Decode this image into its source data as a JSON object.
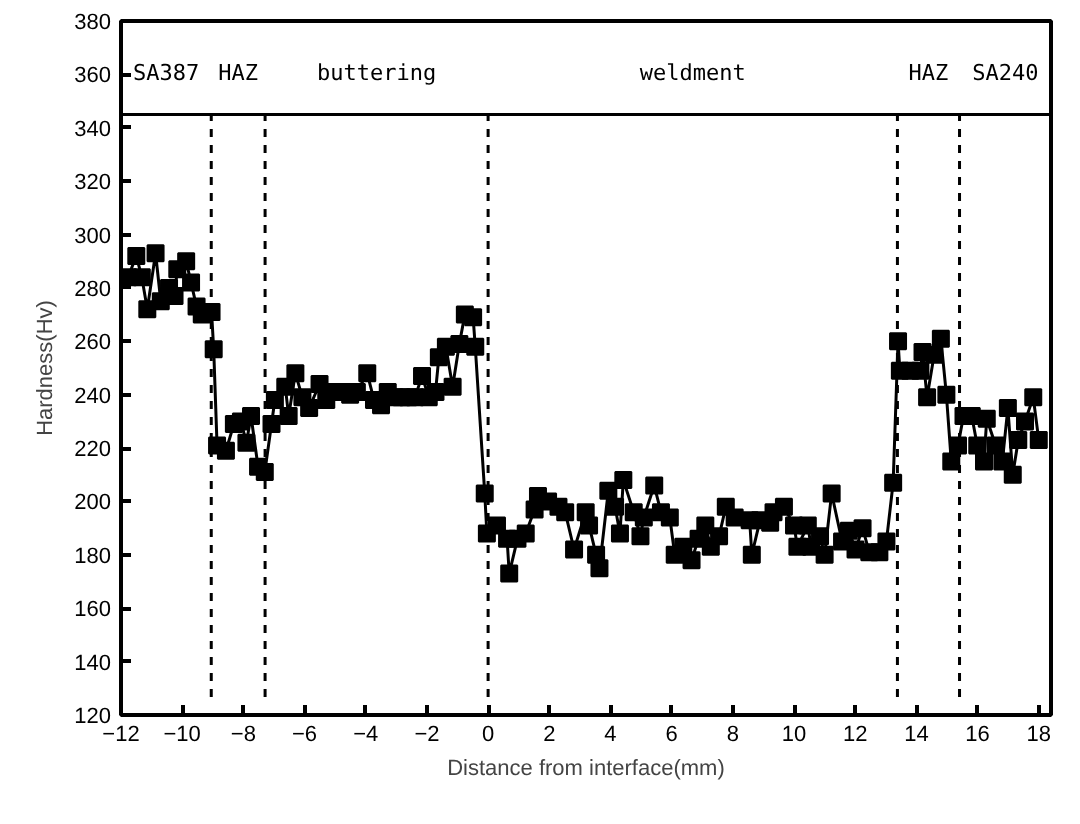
{
  "chart_data": {
    "type": "line",
    "xlabel": "Distance from interface(mm)",
    "ylabel": "Hardness(Hv)",
    "x": [
      -11.77,
      -11.5,
      -11.32,
      -11.14,
      -10.87,
      -10.7,
      -10.43,
      -10.25,
      -10.16,
      -9.87,
      -9.71,
      -9.53,
      -9.36,
      -9.04,
      -8.97,
      -8.86,
      -8.57,
      -8.31,
      -8.08,
      -7.9,
      -7.75,
      -7.52,
      -7.3,
      -7.08,
      -6.97,
      -6.63,
      -6.52,
      -6.3,
      -6.07,
      -5.85,
      -5.51,
      -5.29,
      -5.07,
      -4.73,
      -4.51,
      -4.29,
      -3.95,
      -3.73,
      -3.5,
      -3.28,
      -3.06,
      -2.83,
      -2.61,
      -2.39,
      -2.16,
      -1.94,
      -1.72,
      -1.61,
      -1.38,
      -1.16,
      -0.94,
      -0.76,
      -0.49,
      -0.42,
      -0.11,
      -0.04,
      0.29,
      0.62,
      0.69,
      0.96,
      1.23,
      1.52,
      1.63,
      1.96,
      2.3,
      2.52,
      2.81,
      3.19,
      3.3,
      3.53,
      3.64,
      3.93,
      4.15,
      4.31,
      4.42,
      4.76,
      4.98,
      5.09,
      5.43,
      5.65,
      5.94,
      6.1,
      6.38,
      6.65,
      6.88,
      7.1,
      7.28,
      7.55,
      7.77,
      8.06,
      8.55,
      8.62,
      8.89,
      9.22,
      9.33,
      9.67,
      10.0,
      10.11,
      10.45,
      10.56,
      10.85,
      11.0,
      11.23,
      11.57,
      11.79,
      12.01,
      12.24,
      12.46,
      12.79,
      13.02,
      13.24,
      13.4,
      13.46,
      13.8,
      14.13,
      14.2,
      14.35,
      14.58,
      14.8,
      14.98,
      15.14,
      15.36,
      15.54,
      15.81,
      15.99,
      16.21,
      16.3,
      16.59,
      16.81,
      16.99,
      17.15,
      17.33,
      17.55,
      17.82,
      18.0
    ],
    "series": [
      {
        "color": "#000000",
        "values": [
          284,
          292,
          284,
          272,
          293,
          275,
          280,
          277,
          287,
          290,
          282,
          273,
          270,
          271,
          257,
          221,
          219,
          229,
          230,
          222,
          232,
          213,
          211,
          229,
          238,
          243,
          232,
          248,
          239,
          235,
          244,
          238,
          241,
          241,
          240,
          241,
          248,
          238,
          236,
          241,
          239,
          239,
          239,
          239,
          247,
          239,
          241,
          254,
          258,
          243,
          259,
          270,
          269,
          258,
          203,
          188,
          191,
          186,
          173,
          186,
          188,
          197,
          202,
          200,
          198,
          196,
          182,
          196,
          191,
          180,
          175,
          204,
          198,
          188,
          208,
          196,
          187,
          194,
          206,
          196,
          194,
          180,
          183,
          178,
          186,
          191,
          183,
          187,
          198,
          194,
          193,
          180,
          193,
          192,
          196,
          198,
          191,
          183,
          191,
          183,
          187,
          180,
          203,
          185,
          189,
          182,
          190,
          181,
          181,
          185,
          207,
          260,
          249,
          249,
          249,
          256,
          239,
          255,
          261,
          240,
          215,
          221,
          232,
          232,
          221,
          215,
          231,
          221,
          215,
          235,
          210,
          223,
          230,
          239,
          223
        ]
      }
    ],
    "xlim": [
      -12,
      18.4
    ],
    "ylim": [
      120,
      380
    ],
    "xticks": [
      -12,
      -10,
      -8,
      -6,
      -4,
      -2,
      0,
      2,
      4,
      6,
      8,
      10,
      12,
      14,
      16,
      18
    ],
    "yticks": [
      120,
      140,
      160,
      180,
      200,
      220,
      240,
      260,
      280,
      300,
      320,
      340,
      360,
      380
    ],
    "marker": "square",
    "line_style": "solid",
    "grid": false,
    "ref_lines": [
      {
        "axis": "y",
        "value": 345,
        "line_style": "solid",
        "color": "#000000"
      },
      {
        "axis": "x",
        "value": -9.05,
        "line_style": "dashed",
        "color": "#000000"
      },
      {
        "axis": "x",
        "value": -7.29,
        "line_style": "dashed",
        "color": "#000000"
      },
      {
        "axis": "x",
        "value": 0,
        "line_style": "dashed",
        "color": "#000000"
      },
      {
        "axis": "x",
        "value": 13.38,
        "line_style": "dashed",
        "color": "#000000"
      },
      {
        "axis": "x",
        "value": 15.41,
        "line_style": "dashed",
        "color": "#000000"
      }
    ],
    "annotations": [
      "SA387",
      "HAZ",
      "buttering",
      "weldment",
      "HAZ",
      "SA240"
    ]
  }
}
